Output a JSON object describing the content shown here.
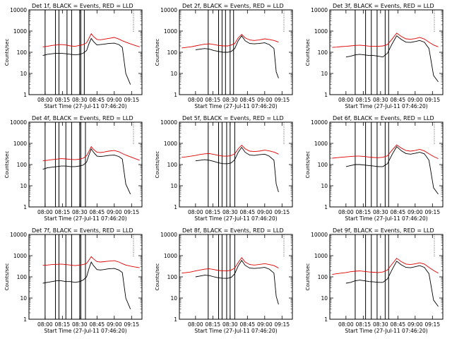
{
  "chart_data": {
    "type": "line",
    "layout": "3x3 grid",
    "ylabel": "Counts/sec",
    "xlabel": "Start Time (27-Jul-11 07:46:20)",
    "yscale": "log",
    "ylim": [
      1,
      10000
    ],
    "ytick_labels": [
      "1",
      "10",
      "100",
      "1000",
      "10000"
    ],
    "series_colors": {
      "events": "#000000",
      "lld": "#e00000"
    },
    "panels": [
      {
        "title": "Det 1f, BLACK = Events, RED = LLD",
        "xticks": [
          "08:00",
          "08:15",
          "08:30",
          "08:45",
          "09:00",
          "09:15"
        ],
        "x": [
          "07:58",
          "08:02",
          "08:06",
          "08:10",
          "08:14",
          "08:18",
          "08:22",
          "08:26",
          "08:30",
          "08:33",
          "08:36",
          "08:38",
          "08:40",
          "08:42",
          "08:45",
          "08:48",
          "08:51",
          "08:55",
          "09:00",
          "09:04",
          "09:07",
          "09:10",
          "09:14",
          "09:18",
          "09:22"
        ],
        "series": [
          {
            "name": "Events",
            "color": "#000000",
            "values": [
              70,
              80,
              85,
              90,
              90,
              85,
              80,
              75,
              80,
              90,
              120,
              250,
              450,
              320,
              220,
              230,
              240,
              260,
              270,
              230,
              170,
              10,
              3,
              null,
              null
            ]
          },
          {
            "name": "LLD",
            "color": "#e00000",
            "values": [
              180,
              190,
              210,
              220,
              230,
              220,
              200,
              190,
              210,
              230,
              280,
              450,
              750,
              550,
              400,
              390,
              410,
              450,
              500,
              420,
              350,
              300,
              250,
              210,
              180
            ]
          }
        ],
        "vlines": [
          "08:00",
          "08:09",
          "08:12",
          "08:19",
          "08:23",
          "08:30",
          "08:31",
          "08:34"
        ]
      },
      {
        "title": "Det 2f, BLACK = Events, RED = LLD",
        "xticks": [
          "08:00",
          "08:15",
          "08:30",
          "08:45",
          "09:00",
          "09:15"
        ],
        "x": [
          "07:48",
          "07:52",
          "07:56",
          "08:00",
          "08:04",
          "08:08",
          "08:12",
          "08:16",
          "08:20",
          "08:24",
          "08:28",
          "08:31",
          "08:34",
          "08:37",
          "08:40",
          "08:43",
          "08:47",
          "08:51",
          "08:55",
          "09:00",
          "09:04",
          "09:08",
          "09:10",
          "09:12"
        ],
        "series": [
          {
            "name": "Events",
            "color": "#000000",
            "values": [
              null,
              null,
              null,
              130,
              140,
              150,
              140,
              120,
              110,
              100,
              100,
              110,
              150,
              350,
              600,
              350,
              260,
              250,
              260,
              280,
              230,
              150,
              12,
              6
            ]
          },
          {
            "name": "LLD",
            "color": "#e00000",
            "values": [
              160,
              170,
              180,
              200,
              220,
              240,
              250,
              230,
              210,
              200,
              200,
              220,
              260,
              480,
              700,
              480,
              380,
              360,
              380,
              430,
              400,
              360,
              330,
              300
            ]
          }
        ],
        "vlines": [
          "08:11",
          "08:20",
          "08:23",
          "08:26",
          "08:30",
          "08:33"
        ]
      },
      {
        "title": "Det 3f, BLACK = Events, RED = LLD",
        "xticks": [
          "08:00",
          "08:15",
          "08:30",
          "08:45",
          "09:00",
          "09:15"
        ],
        "x": [
          "07:48",
          "07:52",
          "07:56",
          "08:00",
          "08:04",
          "08:08",
          "08:12",
          "08:16",
          "08:20",
          "08:24",
          "08:28",
          "08:32",
          "08:36",
          "08:40",
          "08:44",
          "08:48",
          "08:52",
          "08:56",
          "09:00",
          "09:04",
          "09:08",
          "09:12",
          "09:16",
          "09:20"
        ],
        "series": [
          {
            "name": "Events",
            "color": "#000000",
            "values": [
              null,
              null,
              null,
              60,
              65,
              75,
              80,
              75,
              70,
              70,
              65,
              60,
              90,
              250,
              600,
              400,
              300,
              290,
              320,
              360,
              300,
              150,
              8,
              4
            ]
          },
          {
            "name": "LLD",
            "color": "#e00000",
            "values": [
              170,
              175,
              185,
              190,
              200,
              210,
              215,
              205,
              195,
              190,
              190,
              200,
              230,
              420,
              800,
              560,
              430,
              410,
              440,
              500,
              420,
              300,
              220,
              180
            ]
          }
        ],
        "vlines": [
          "08:08",
          "08:17",
          "08:22",
          "08:27",
          "08:34",
          "08:37"
        ]
      },
      {
        "title": "Det 4f, BLACK = Events, RED = LLD",
        "xticks": [
          "08:00",
          "08:15",
          "08:30",
          "08:45",
          "09:00",
          "09:15"
        ],
        "x": [
          "07:58",
          "08:02",
          "08:06",
          "08:10",
          "08:14",
          "08:18",
          "08:22",
          "08:26",
          "08:30",
          "08:33",
          "08:36",
          "08:38",
          "08:40",
          "08:42",
          "08:45",
          "08:48",
          "08:51",
          "08:55",
          "09:00",
          "09:04",
          "09:07",
          "09:10",
          "09:14",
          "09:18",
          "09:22"
        ],
        "series": [
          {
            "name": "Events",
            "color": "#000000",
            "values": [
              60,
              70,
              75,
              80,
              85,
              85,
              80,
              80,
              85,
              95,
              130,
              280,
              550,
              380,
              250,
              240,
              250,
              270,
              280,
              240,
              180,
              12,
              4,
              null,
              null
            ]
          },
          {
            "name": "LLD",
            "color": "#e00000",
            "values": [
              150,
              160,
              170,
              180,
              190,
              185,
              175,
              170,
              180,
              200,
              260,
              420,
              700,
              520,
              380,
              370,
              390,
              430,
              460,
              400,
              330,
              280,
              230,
              190,
              160
            ]
          }
        ],
        "vlines": [
          "08:00",
          "08:09",
          "08:12",
          "08:18",
          "08:23",
          "08:30",
          "08:31",
          "08:35"
        ]
      },
      {
        "title": "Det 5f, BLACK = Events, RED = LLD",
        "xticks": [
          "08:00",
          "08:15",
          "08:30",
          "08:45",
          "09:00",
          "09:15"
        ],
        "x": [
          "07:48",
          "07:52",
          "07:56",
          "08:00",
          "08:04",
          "08:08",
          "08:12",
          "08:16",
          "08:20",
          "08:24",
          "08:28",
          "08:31",
          "08:34",
          "08:37",
          "08:40",
          "08:43",
          "08:47",
          "08:51",
          "08:55",
          "09:00",
          "09:04",
          "09:08",
          "09:10",
          "09:12"
        ],
        "series": [
          {
            "name": "Events",
            "color": "#000000",
            "values": [
              null,
              null,
              null,
              150,
              160,
              170,
              160,
              140,
              120,
              110,
              110,
              120,
              170,
              380,
              650,
              380,
              280,
              270,
              290,
              310,
              250,
              160,
              12,
              5
            ]
          },
          {
            "name": "LLD",
            "color": "#e00000",
            "values": [
              220,
              230,
              250,
              270,
              300,
              320,
              330,
              300,
              270,
              250,
              250,
              270,
              320,
              560,
              820,
              560,
              430,
              410,
              430,
              480,
              440,
              390,
              350,
              310
            ]
          }
        ],
        "vlines": [
          "08:11",
          "08:20",
          "08:23",
          "08:27",
          "08:30",
          "08:34"
        ]
      },
      {
        "title": "Det 6f, BLACK = Events, RED = LLD",
        "xticks": [
          "08:00",
          "08:15",
          "08:30",
          "08:45",
          "09:00",
          "09:15"
        ],
        "x": [
          "07:48",
          "07:52",
          "07:56",
          "08:00",
          "08:04",
          "08:08",
          "08:12",
          "08:16",
          "08:20",
          "08:24",
          "08:28",
          "08:32",
          "08:36",
          "08:40",
          "08:44",
          "08:48",
          "08:52",
          "08:56",
          "09:00",
          "09:04",
          "09:08",
          "09:12",
          "09:16",
          "09:20"
        ],
        "series": [
          {
            "name": "Events",
            "color": "#000000",
            "values": [
              null,
              null,
              null,
              80,
              90,
              100,
              100,
              95,
              90,
              85,
              80,
              80,
              110,
              300,
              700,
              450,
              330,
              310,
              340,
              380,
              320,
              160,
              8,
              4
            ]
          },
          {
            "name": "LLD",
            "color": "#e00000",
            "values": [
              200,
              210,
              220,
              230,
              240,
              250,
              250,
              240,
              225,
              215,
              210,
              220,
              260,
              480,
              850,
              600,
              460,
              430,
              460,
              520,
              440,
              320,
              240,
              190
            ]
          }
        ],
        "vlines": [
          "08:08",
          "08:17",
          "08:22",
          "08:27",
          "08:34",
          "08:37"
        ]
      },
      {
        "title": "Det 7f, BLACK = Events, RED = LLD",
        "xticks": [
          "08:00",
          "08:15",
          "08:30",
          "08:45",
          "09:00",
          "09:15"
        ],
        "x": [
          "07:58",
          "08:02",
          "08:06",
          "08:10",
          "08:14",
          "08:18",
          "08:22",
          "08:26",
          "08:30",
          "08:33",
          "08:36",
          "08:38",
          "08:40",
          "08:42",
          "08:45",
          "08:48",
          "08:51",
          "08:55",
          "09:00",
          "09:04",
          "09:07",
          "09:10",
          "09:14",
          "09:18",
          "09:22"
        ],
        "series": [
          {
            "name": "Events",
            "color": "#000000",
            "values": [
              50,
              55,
              60,
              65,
              65,
              60,
              60,
              55,
              60,
              70,
              100,
              240,
              500,
              340,
              220,
              210,
              220,
              240,
              250,
              210,
              160,
              10,
              3,
              null,
              null
            ]
          },
          {
            "name": "LLD",
            "color": "#e00000",
            "values": [
              350,
              360,
              380,
              390,
              400,
              380,
              360,
              340,
              360,
              380,
              430,
              620,
              900,
              700,
              520,
              500,
              520,
              550,
              580,
              500,
              420,
              360,
              320,
              290,
              270
            ]
          }
        ],
        "vlines": [
          "08:00",
          "08:09",
          "08:12",
          "08:18",
          "08:23",
          "08:30",
          "08:31",
          "08:35"
        ]
      },
      {
        "title": "Det 8f, BLACK = Events, RED = LLD",
        "xticks": [
          "08:00",
          "08:15",
          "08:30",
          "08:45",
          "09:00",
          "09:15"
        ],
        "x": [
          "07:48",
          "07:52",
          "07:56",
          "08:00",
          "08:04",
          "08:08",
          "08:12",
          "08:16",
          "08:20",
          "08:24",
          "08:28",
          "08:31",
          "08:34",
          "08:37",
          "08:40",
          "08:43",
          "08:47",
          "08:51",
          "08:55",
          "09:00",
          "09:04",
          "09:08",
          "09:10",
          "09:12"
        ],
        "series": [
          {
            "name": "Events",
            "color": "#000000",
            "values": [
              null,
              null,
              null,
              100,
              110,
              120,
              115,
              100,
              90,
              85,
              85,
              95,
              140,
              330,
              600,
              350,
              260,
              250,
              260,
              280,
              230,
              150,
              12,
              5
            ]
          },
          {
            "name": "LLD",
            "color": "#e00000",
            "values": [
              150,
              160,
              170,
              190,
              210,
              230,
              240,
              220,
              200,
              190,
              190,
              210,
              260,
              480,
              800,
              500,
              380,
              360,
              380,
              420,
              380,
              340,
              300,
              260
            ]
          }
        ],
        "vlines": [
          "08:11",
          "08:20",
          "08:23",
          "08:27",
          "08:30",
          "08:34"
        ]
      },
      {
        "title": "Det 9f, BLACK = Events, RED = LLD",
        "xticks": [
          "08:00",
          "08:15",
          "08:30",
          "08:45",
          "09:00",
          "09:15"
        ],
        "x": [
          "07:48",
          "07:52",
          "07:56",
          "08:00",
          "08:04",
          "08:08",
          "08:12",
          "08:16",
          "08:20",
          "08:24",
          "08:28",
          "08:32",
          "08:36",
          "08:40",
          "08:44",
          "08:48",
          "08:52",
          "08:56",
          "09:00",
          "09:04",
          "09:08",
          "09:12",
          "09:16",
          "09:20"
        ],
        "series": [
          {
            "name": "Events",
            "color": "#000000",
            "values": [
              null,
              null,
              null,
              50,
              55,
              65,
              70,
              65,
              60,
              58,
              55,
              55,
              80,
              220,
              550,
              370,
              280,
              270,
              300,
              340,
              280,
              140,
              8,
              4
            ]
          },
          {
            "name": "LLD",
            "color": "#e00000",
            "values": [
              130,
              140,
              150,
              160,
              175,
              185,
              190,
              180,
              170,
              165,
              160,
              170,
              210,
              400,
              750,
              520,
              400,
              380,
              410,
              460,
              400,
              280,
              200,
              150
            ]
          }
        ],
        "vlines": [
          "08:08",
          "08:17",
          "08:22",
          "08:27",
          "08:34",
          "08:37"
        ]
      }
    ]
  }
}
